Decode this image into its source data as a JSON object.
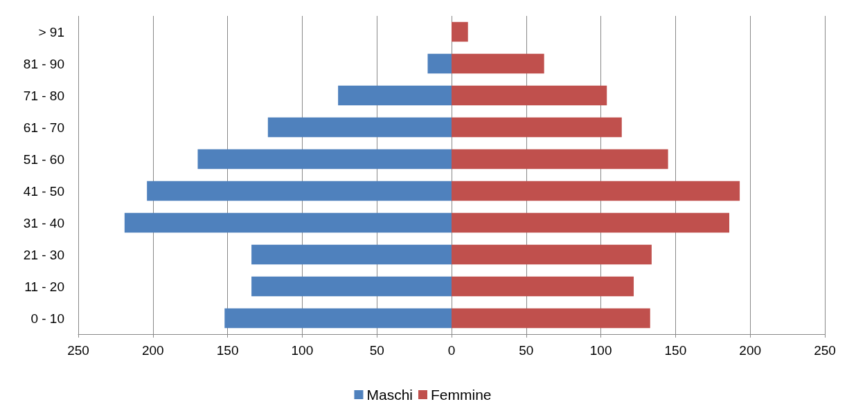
{
  "chart_data": {
    "type": "bar",
    "orientation": "horizontal",
    "categories": [
      "> 91",
      "81 - 90",
      "71 - 80",
      "61 - 70",
      "51 - 60",
      "41 - 50",
      "31 - 40",
      "21 - 30",
      "11 - 20",
      "0 - 10"
    ],
    "series": [
      {
        "name": "Maschi",
        "color": "#4f81bd",
        "values": [
          null,
          -16,
          -76,
          -123,
          -170,
          -204,
          -219,
          -134,
          -134,
          -152
        ]
      },
      {
        "name": "Femmine",
        "color": "#c0504d",
        "values": [
          11,
          62,
          104,
          114,
          145,
          193,
          186,
          134,
          122,
          133
        ]
      }
    ],
    "xlim": [
      -250,
      250
    ],
    "xticks": [
      {
        "value": -250,
        "label": "250"
      },
      {
        "value": -200,
        "label": "200"
      },
      {
        "value": -150,
        "label": "150"
      },
      {
        "value": -100,
        "label": "100"
      },
      {
        "value": -50,
        "label": "50"
      },
      0,
      50,
      100,
      150,
      200,
      250
    ],
    "stacked": true,
    "grid": "x",
    "legend": "bottom"
  }
}
